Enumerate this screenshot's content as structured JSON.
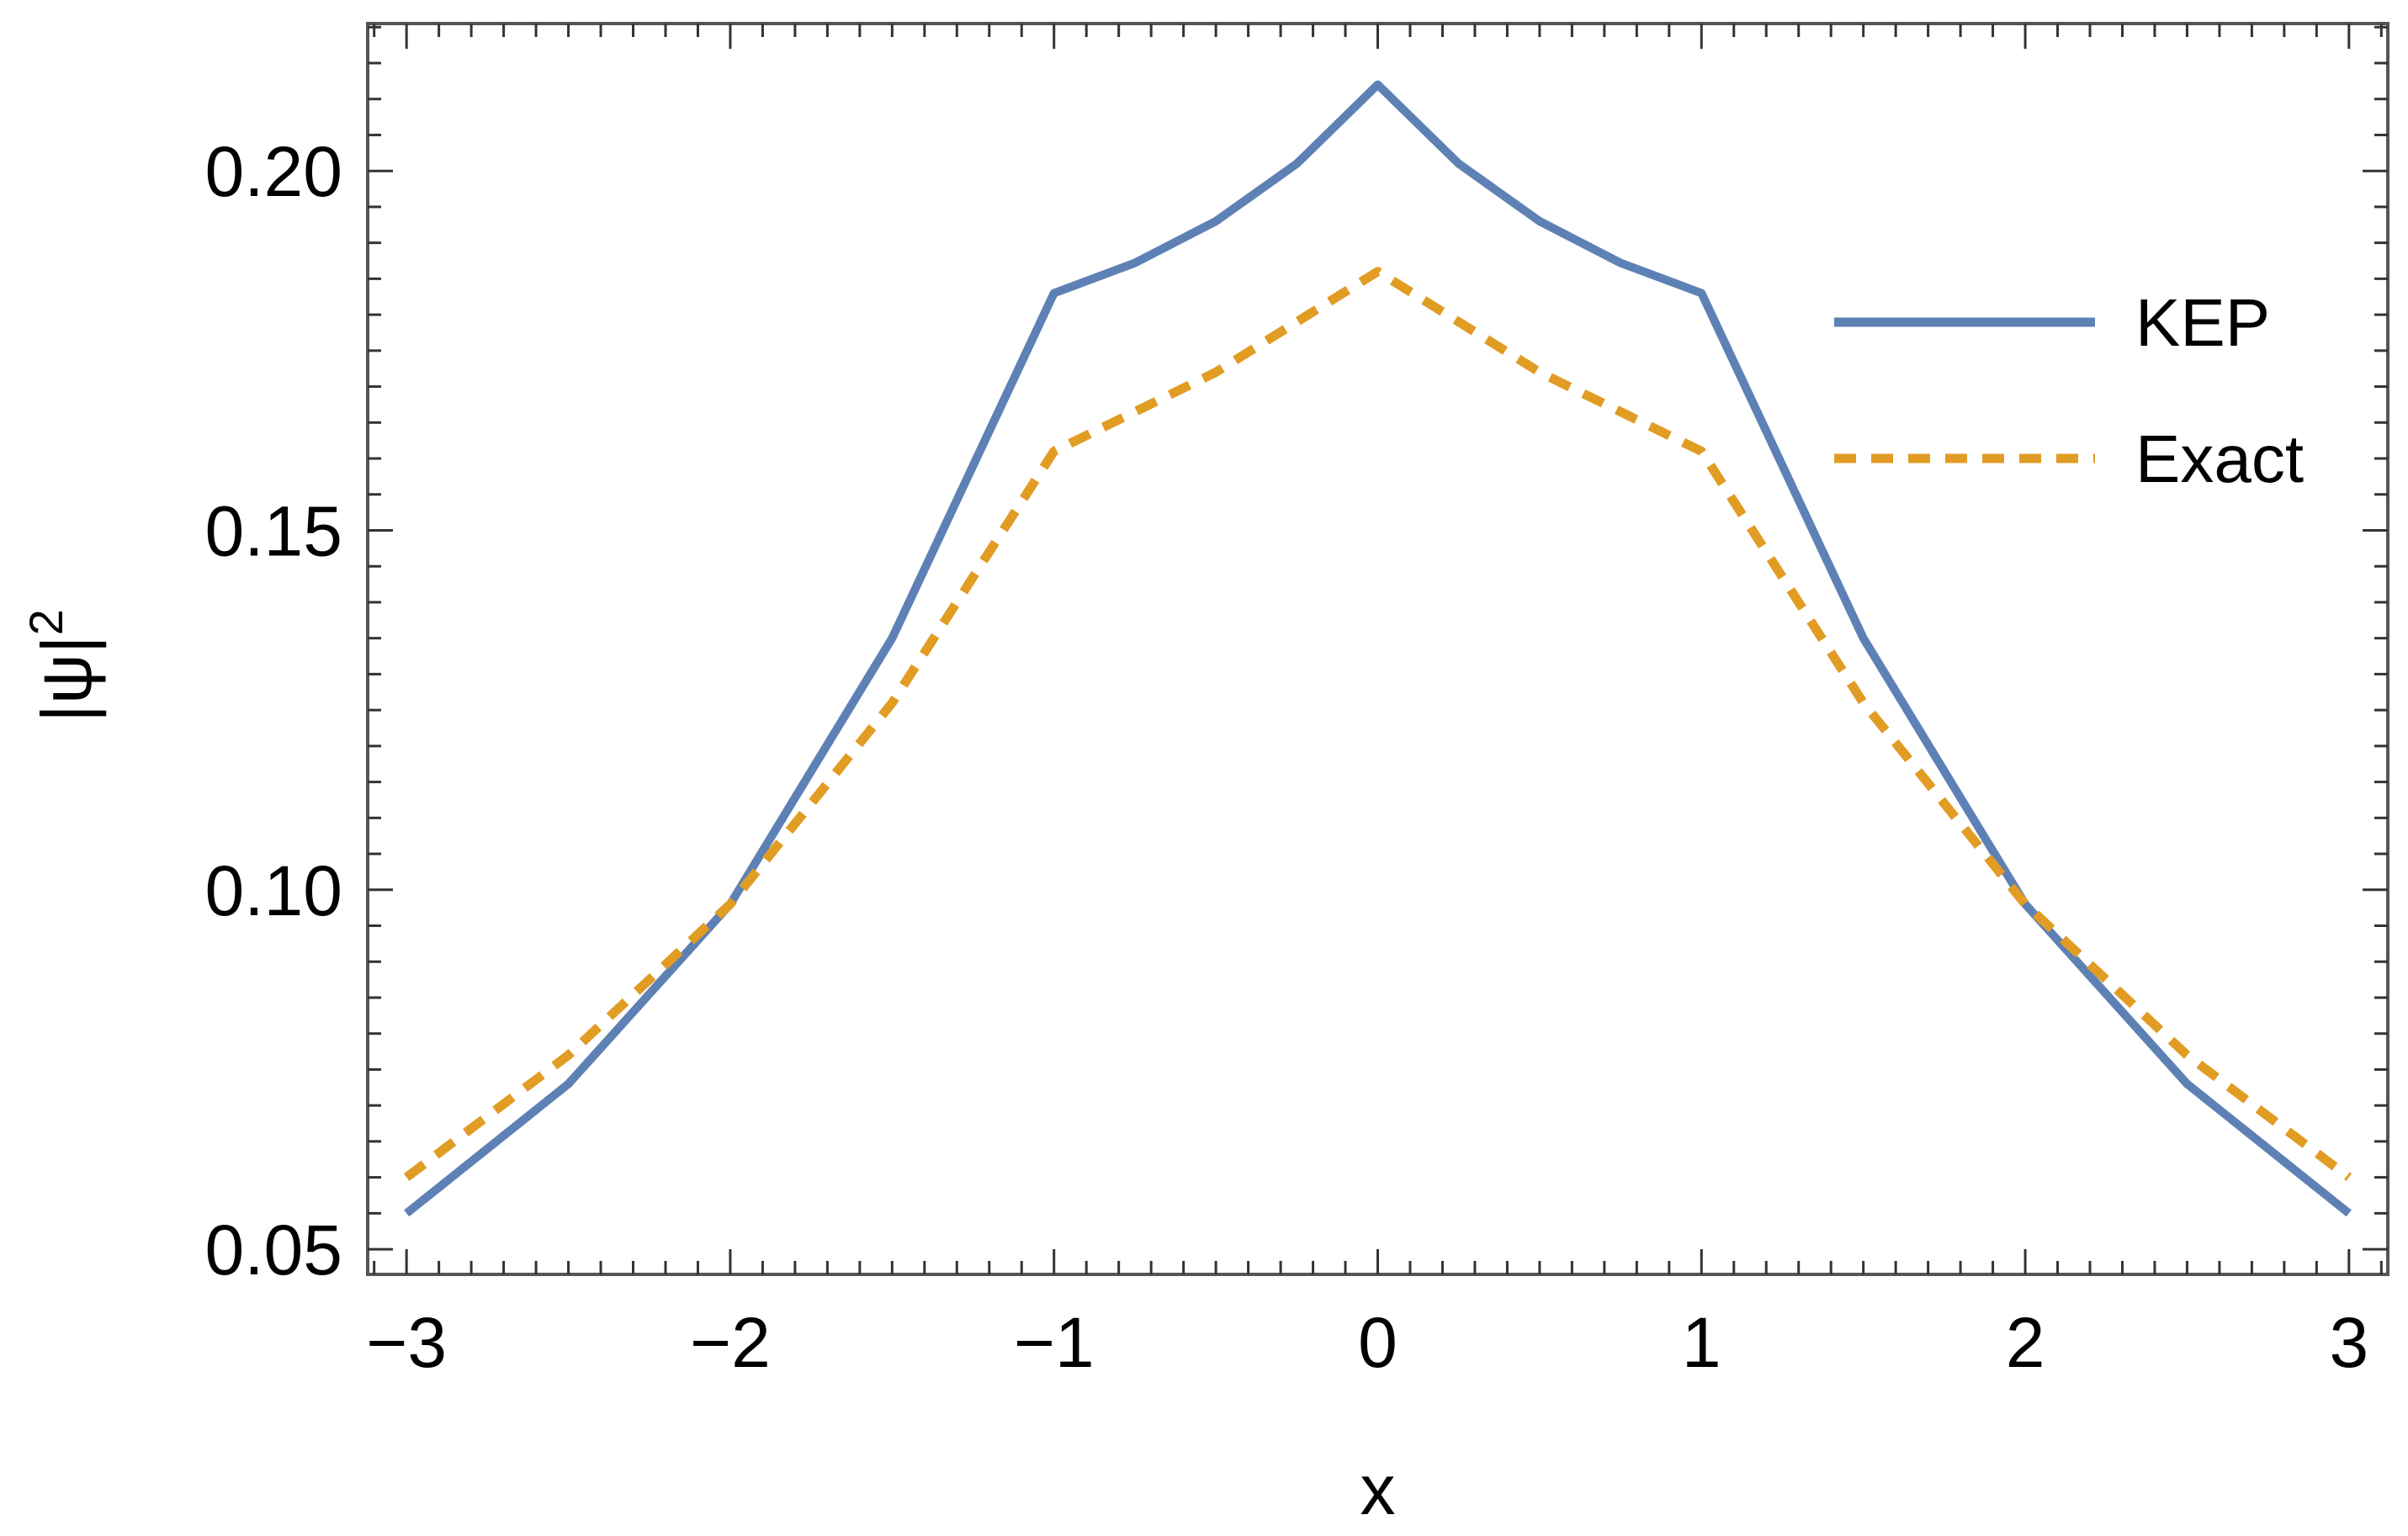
{
  "chart_data": {
    "type": "line",
    "xlabel": "x",
    "ylabel": "|ψ|",
    "ylabel_superscript": "2",
    "xlim": [
      -3.12,
      3.12
    ],
    "ylim": [
      0.0465,
      0.2205
    ],
    "x_ticks": [
      -3,
      -2,
      -1,
      0,
      1,
      2,
      3
    ],
    "x_tick_labels": [
      "−3",
      "−2",
      "−1",
      "0",
      "1",
      "2",
      "3"
    ],
    "y_ticks": [
      0.05,
      0.1,
      0.15,
      0.2
    ],
    "y_tick_labels": [
      "0.05",
      "0.10",
      "0.15",
      "0.20"
    ],
    "grid": false,
    "legend_position": "right",
    "series": [
      {
        "name": "KEP",
        "color": "#5e81b5",
        "style": "solid",
        "x": [
          -3.0,
          -2.5,
          -2.0,
          -1.5,
          -1.0,
          -0.75,
          -0.5,
          -0.25,
          0.0,
          0.25,
          0.5,
          0.75,
          1.0,
          1.5,
          2.0,
          2.5,
          3.0
        ],
        "y": [
          0.055,
          0.073,
          0.098,
          0.135,
          0.183,
          0.1872,
          0.193,
          0.201,
          0.212,
          0.201,
          0.193,
          0.1872,
          0.183,
          0.135,
          0.098,
          0.073,
          0.055
        ]
      },
      {
        "name": "Exact",
        "color": "#e19c24",
        "style": "dashed",
        "x": [
          -3.0,
          -2.5,
          -2.0,
          -1.5,
          -1.0,
          -0.5,
          0.0,
          0.5,
          1.0,
          1.5,
          2.0,
          2.5,
          3.0
        ],
        "y": [
          0.06,
          0.077,
          0.098,
          0.126,
          0.161,
          0.172,
          0.186,
          0.172,
          0.161,
          0.126,
          0.098,
          0.077,
          0.06
        ]
      }
    ]
  }
}
